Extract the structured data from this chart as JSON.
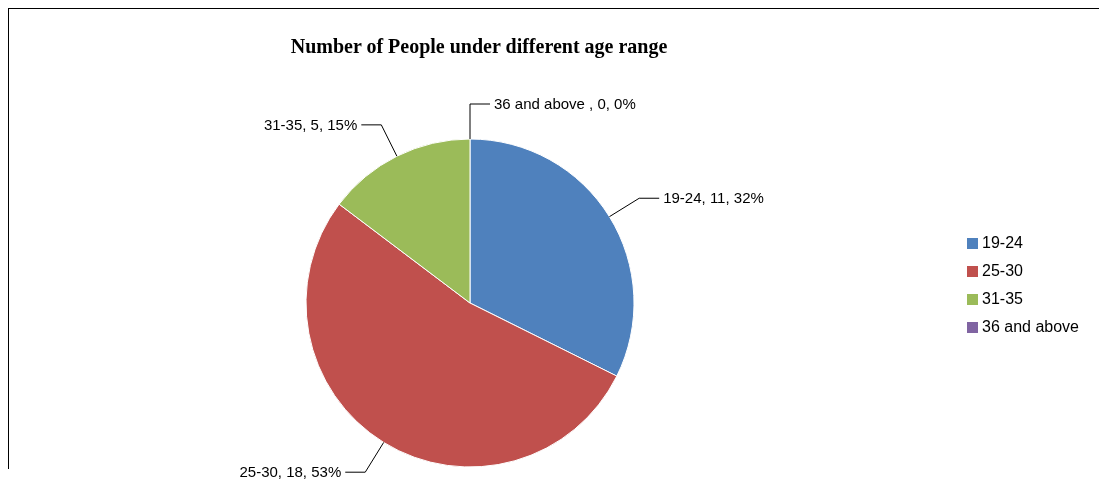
{
  "chart_data": {
    "type": "pie",
    "title": "Number of People under different age range",
    "categories": [
      "19-24",
      "25-30",
      "31-35",
      "36 and above"
    ],
    "values": [
      11,
      18,
      5,
      0
    ],
    "value_labels": [
      "19-24, 11, 32%",
      "25-30, 18, 53%",
      "31-35, 5, 15%",
      "36 and above , 0, 0%"
    ],
    "colors": [
      "#4f81bd",
      "#c0504d",
      "#9bbb59",
      "#8064a2"
    ],
    "legend": "right"
  }
}
